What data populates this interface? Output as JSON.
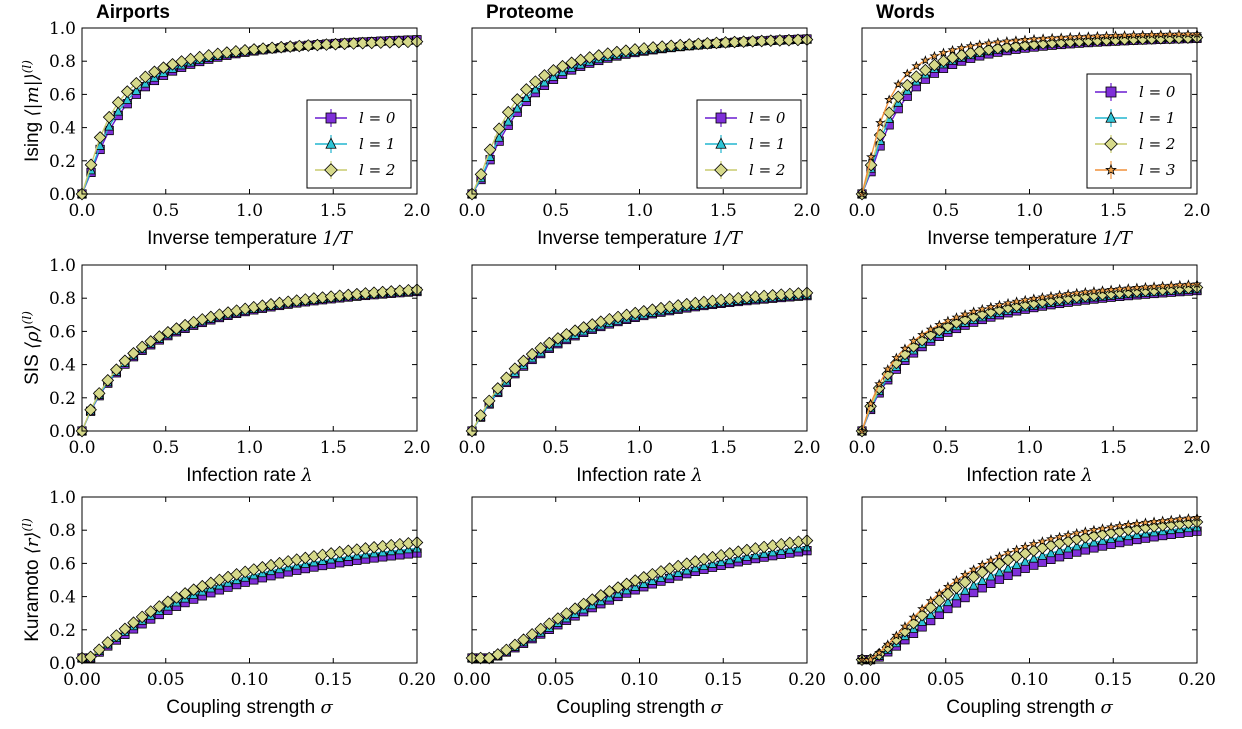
{
  "columns": [
    {
      "title": "Airports",
      "layers": [
        0,
        1,
        2
      ]
    },
    {
      "title": "Proteome",
      "layers": [
        0,
        1,
        2
      ]
    },
    {
      "title": "Words",
      "layers": [
        0,
        1,
        2,
        3
      ]
    }
  ],
  "rows": [
    {
      "ylabel_text": "Ising",
      "ylabel_math": "⟨|m|⟩",
      "ylabel_sup": "(l)",
      "xlabel_text": "Inverse temperature ",
      "xlabel_math": "1/T",
      "xlim": [
        0,
        2
      ],
      "xticks": [
        "0.0",
        "0.5",
        "1.0",
        "1.5",
        "2.0"
      ]
    },
    {
      "ylabel_text": "SIS",
      "ylabel_math": "⟨ρ⟩",
      "ylabel_sup": "(l)",
      "xlabel_text": "Infection rate ",
      "xlabel_math": "λ",
      "xlim": [
        0,
        2
      ],
      "xticks": [
        "0.0",
        "0.5",
        "1.0",
        "1.5",
        "2.0"
      ]
    },
    {
      "ylabel_text": "Kuramoto",
      "ylabel_math": "⟨r⟩",
      "ylabel_sup": "(l)",
      "xlabel_text": "Coupling strength ",
      "xlabel_math": "σ",
      "xlim": [
        0,
        0.2
      ],
      "xticks": [
        "0.00",
        "0.05",
        "0.10",
        "0.15",
        "0.20"
      ]
    }
  ],
  "yticks": [
    "0.0",
    "0.2",
    "0.4",
    "0.6",
    "0.8",
    "1.0"
  ],
  "legend_labels": [
    "l = 0",
    "l = 1",
    "l = 2",
    "l = 3"
  ],
  "series_style": [
    {
      "marker": "square",
      "fill": "#7f2fd9",
      "line": "#6a1bd0"
    },
    {
      "marker": "triangle",
      "fill": "#2ec4d6",
      "line": "#22b5cf"
    },
    {
      "marker": "diamond",
      "fill": "#d6d98a",
      "line": "#c9cc6e"
    },
    {
      "marker": "star",
      "fill": "#f5a64d",
      "line": "#f0913a"
    }
  ],
  "chart_data": [
    {
      "type": "line",
      "panel": "Airports / Ising",
      "xlim": [
        0,
        2
      ],
      "ylim": [
        0,
        1
      ],
      "n_points": 38,
      "series": [
        {
          "name": "l = 0",
          "plateau": 0.985,
          "half_x": 0.23,
          "shape": 1.3
        },
        {
          "name": "l = 1",
          "plateau": 0.975,
          "half_x": 0.21,
          "shape": 1.3
        },
        {
          "name": "l = 2",
          "plateau": 0.955,
          "half_x": 0.17,
          "shape": 1.3
        }
      ]
    },
    {
      "type": "line",
      "panel": "Proteome / Ising",
      "xlim": [
        0,
        2
      ],
      "ylim": [
        0,
        1
      ],
      "n_points": 38,
      "series": [
        {
          "name": "l = 0",
          "plateau": 0.985,
          "half_x": 0.27,
          "shape": 1.45
        },
        {
          "name": "l = 1",
          "plateau": 0.975,
          "half_x": 0.25,
          "shape": 1.45
        },
        {
          "name": "l = 2",
          "plateau": 0.965,
          "half_x": 0.21,
          "shape": 1.45
        }
      ]
    },
    {
      "type": "line",
      "panel": "Words / Ising",
      "xlim": [
        0,
        2
      ],
      "ylim": [
        0,
        1
      ],
      "n_points": 38,
      "series": [
        {
          "name": "l = 0",
          "plateau": 0.975,
          "half_x": 0.2,
          "shape": 1.4
        },
        {
          "name": "l = 1",
          "plateau": 0.975,
          "half_x": 0.18,
          "shape": 1.4
        },
        {
          "name": "l = 2",
          "plateau": 0.97,
          "half_x": 0.16,
          "shape": 1.4
        },
        {
          "name": "l = 3",
          "plateau": 0.985,
          "half_x": 0.13,
          "shape": 1.4
        }
      ]
    },
    {
      "type": "line",
      "panel": "Airports / SIS",
      "xlim": [
        0,
        2
      ],
      "ylim": [
        0,
        1
      ],
      "n_points": 40,
      "series": [
        {
          "name": "l = 0",
          "plateau": 1.0,
          "half_x": 0.38,
          "shape": 1.0
        },
        {
          "name": "l = 1",
          "plateau": 1.0,
          "half_x": 0.37,
          "shape": 1.0
        },
        {
          "name": "l = 2",
          "plateau": 1.0,
          "half_x": 0.35,
          "shape": 1.0
        }
      ]
    },
    {
      "type": "line",
      "panel": "Proteome / SIS",
      "xlim": [
        0,
        2
      ],
      "ylim": [
        0,
        1
      ],
      "n_points": 40,
      "series": [
        {
          "name": "l = 0",
          "plateau": 0.97,
          "half_x": 0.44,
          "shape": 1.1
        },
        {
          "name": "l = 1",
          "plateau": 0.97,
          "half_x": 0.43,
          "shape": 1.1
        },
        {
          "name": "l = 2",
          "plateau": 0.97,
          "half_x": 0.39,
          "shape": 1.1
        }
      ]
    },
    {
      "type": "line",
      "panel": "Words / SIS",
      "xlim": [
        0,
        2
      ],
      "ylim": [
        0,
        1
      ],
      "n_points": 40,
      "series": [
        {
          "name": "l = 0",
          "plateau": 0.99,
          "half_x": 0.34,
          "shape": 1.0
        },
        {
          "name": "l = 1",
          "plateau": 0.99,
          "half_x": 0.32,
          "shape": 1.0
        },
        {
          "name": "l = 2",
          "plateau": 0.99,
          "half_x": 0.29,
          "shape": 1.0
        },
        {
          "name": "l = 3",
          "plateau": 1.0,
          "half_x": 0.26,
          "shape": 1.0
        }
      ]
    },
    {
      "type": "line",
      "panel": "Airports / Kuramoto",
      "xlim": [
        0,
        0.2
      ],
      "ylim": [
        0,
        1
      ],
      "n_points": 40,
      "series": [
        {
          "name": "l = 0",
          "plateau": 0.9,
          "half_x": 0.085,
          "shape": 1.2,
          "floor": 0.03
        },
        {
          "name": "l = 1",
          "plateau": 0.92,
          "half_x": 0.08,
          "shape": 1.2,
          "floor": 0.03
        },
        {
          "name": "l = 2",
          "plateau": 0.95,
          "half_x": 0.075,
          "shape": 1.2,
          "floor": 0.03
        }
      ]
    },
    {
      "type": "line",
      "panel": "Proteome / Kuramoto",
      "xlim": [
        0,
        0.2
      ],
      "ylim": [
        0,
        1
      ],
      "n_points": 40,
      "series": [
        {
          "name": "l = 0",
          "plateau": 0.9,
          "half_x": 0.1,
          "shape": 1.6,
          "floor": 0.03
        },
        {
          "name": "l = 1",
          "plateau": 0.92,
          "half_x": 0.098,
          "shape": 1.6,
          "floor": 0.03
        },
        {
          "name": "l = 2",
          "plateau": 0.95,
          "half_x": 0.092,
          "shape": 1.6,
          "floor": 0.03
        }
      ]
    },
    {
      "type": "line",
      "panel": "Words / Kuramoto",
      "xlim": [
        0,
        0.2
      ],
      "ylim": [
        0,
        1
      ],
      "n_points": 40,
      "series": [
        {
          "name": "l = 0",
          "plateau": 0.97,
          "half_x": 0.078,
          "shape": 1.6,
          "floor": 0.02
        },
        {
          "name": "l = 1",
          "plateau": 0.97,
          "half_x": 0.07,
          "shape": 1.6,
          "floor": 0.02
        },
        {
          "name": "l = 2",
          "plateau": 0.98,
          "half_x": 0.062,
          "shape": 1.6,
          "floor": 0.02
        },
        {
          "name": "l = 3",
          "plateau": 0.99,
          "half_x": 0.056,
          "shape": 1.6,
          "floor": 0.02
        }
      ]
    }
  ]
}
